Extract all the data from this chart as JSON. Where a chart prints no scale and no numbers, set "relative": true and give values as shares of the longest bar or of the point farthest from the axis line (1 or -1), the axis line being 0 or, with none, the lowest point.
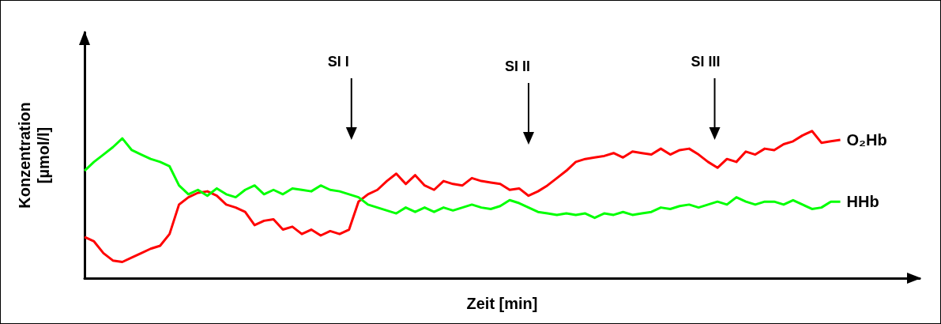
{
  "chart_data": {
    "type": "line",
    "relative": true,
    "xlabel": "Zeit [min]",
    "ylabel": "Konzentration [µmol/l]",
    "marker": "none",
    "line_style": "solid",
    "grid": false,
    "legend": false,
    "annotations": [
      "SI I",
      "SI II",
      "SI III"
    ],
    "categories": [
      null,
      null,
      null,
      null,
      null,
      null,
      null,
      null,
      null,
      null,
      null,
      null,
      null,
      null,
      null,
      null,
      null,
      null,
      null,
      null,
      null,
      null,
      null,
      null,
      null,
      null,
      null,
      null,
      null,
      null,
      null,
      null,
      null,
      null,
      null,
      null,
      null,
      null,
      null,
      null,
      null,
      null,
      null,
      null,
      null,
      null,
      null,
      null,
      null,
      null,
      null,
      null,
      null,
      null,
      null,
      null,
      null,
      null,
      null,
      null,
      null,
      null,
      null,
      null,
      null,
      null,
      null,
      null,
      null,
      null,
      null,
      null,
      null,
      null,
      null,
      null,
      null,
      null,
      null,
      null,
      null
    ],
    "series": [
      {
        "name": "O₂Hb",
        "color": "#ff0000",
        "values": [
          0.28,
          0.25,
          0.17,
          0.12,
          0.11,
          0.14,
          0.17,
          0.2,
          0.22,
          0.3,
          0.5,
          0.55,
          0.58,
          0.59,
          0.56,
          0.5,
          0.48,
          0.45,
          0.36,
          0.39,
          0.4,
          0.33,
          0.35,
          0.3,
          0.33,
          0.29,
          0.32,
          0.3,
          0.33,
          0.52,
          0.57,
          0.6,
          0.66,
          0.71,
          0.64,
          0.7,
          0.63,
          0.6,
          0.66,
          0.64,
          0.63,
          0.68,
          0.66,
          0.65,
          0.64,
          0.6,
          0.61,
          0.56,
          0.59,
          0.63,
          0.68,
          0.73,
          0.79,
          0.81,
          0.82,
          0.83,
          0.85,
          0.82,
          0.86,
          0.85,
          0.84,
          0.88,
          0.84,
          0.87,
          0.88,
          0.84,
          0.79,
          0.75,
          0.81,
          0.79,
          0.86,
          0.84,
          0.88,
          0.87,
          0.91,
          0.93,
          0.97,
          1,
          0.92,
          0.93,
          0.94
        ]
      },
      {
        "name": "HHb",
        "color": "#00ff00",
        "values": [
          0.73,
          0.79,
          0.84,
          0.89,
          0.95,
          0.87,
          0.84,
          0.81,
          0.79,
          0.76,
          0.63,
          0.57,
          0.6,
          0.56,
          0.61,
          0.57,
          0.55,
          0.6,
          0.63,
          0.57,
          0.6,
          0.57,
          0.61,
          0.6,
          0.59,
          0.63,
          0.6,
          0.59,
          0.57,
          0.55,
          0.5,
          0.48,
          0.46,
          0.44,
          0.48,
          0.45,
          0.48,
          0.45,
          0.48,
          0.46,
          0.48,
          0.5,
          0.48,
          0.47,
          0.49,
          0.53,
          0.51,
          0.48,
          0.45,
          0.44,
          0.43,
          0.44,
          0.43,
          0.44,
          0.41,
          0.44,
          0.43,
          0.45,
          0.43,
          0.44,
          0.45,
          0.48,
          0.47,
          0.49,
          0.5,
          0.48,
          0.5,
          0.52,
          0.5,
          0.55,
          0.52,
          0.5,
          0.52,
          0.52,
          0.5,
          0.53,
          0.5,
          0.47,
          0.48,
          0.52,
          0.52
        ]
      }
    ]
  }
}
